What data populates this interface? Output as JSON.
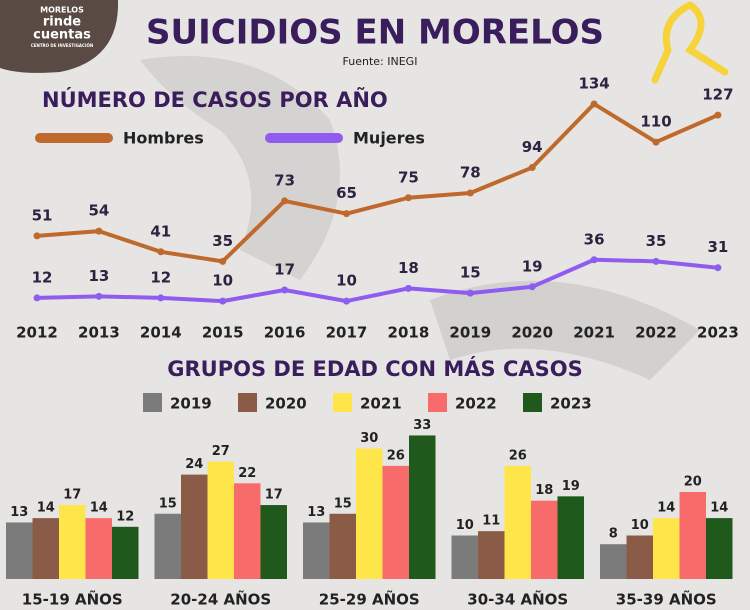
{
  "header": {
    "logo": [
      "MORELOS",
      "rinde",
      "cuentas",
      "CENTRO DE INVESTIGACIÓN"
    ],
    "title": "SUICIDIOS EN MORELOS",
    "source": "Fuente: INEGI"
  },
  "chart_data": [
    {
      "type": "line",
      "title": "NÚMERO DE CASOS POR AÑO",
      "categories": [
        "2012",
        "2013",
        "2014",
        "2015",
        "2016",
        "2017",
        "2018",
        "2019",
        "2020",
        "2021",
        "2022",
        "2023"
      ],
      "series": [
        {
          "name": "Hombres",
          "color": "#c0692c",
          "values": [
            51,
            54,
            41,
            35,
            73,
            65,
            75,
            78,
            94,
            134,
            110,
            127
          ]
        },
        {
          "name": "Mujeres",
          "color": "#8f5cf0",
          "values": [
            12,
            13,
            12,
            10,
            17,
            10,
            18,
            15,
            19,
            36,
            35,
            31
          ]
        }
      ]
    },
    {
      "type": "bar",
      "title": "GRUPOS DE EDAD CON MÁS CASOS",
      "categories": [
        "15-19 AÑOS",
        "20-24 AÑOS",
        "25-29 AÑOS",
        "30-34 AÑOS",
        "35-39 AÑOS"
      ],
      "series": [
        {
          "name": "2019",
          "color": "#7b7b7b",
          "values": [
            13,
            15,
            13,
            10,
            8
          ]
        },
        {
          "name": "2020",
          "color": "#8a5c48",
          "values": [
            14,
            24,
            15,
            11,
            10
          ]
        },
        {
          "name": "2021",
          "color": "#fde54a",
          "values": [
            17,
            27,
            30,
            26,
            14
          ]
        },
        {
          "name": "2022",
          "color": "#f76b6b",
          "values": [
            14,
            22,
            26,
            18,
            20
          ]
        },
        {
          "name": "2023",
          "color": "#1f5a1c",
          "values": [
            12,
            17,
            33,
            19,
            14
          ]
        }
      ]
    }
  ]
}
